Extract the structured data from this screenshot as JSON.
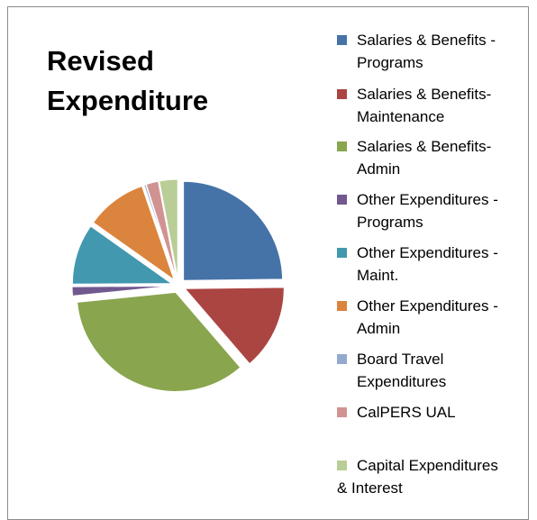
{
  "chart_data": {
    "type": "pie",
    "title": "Revised\nExpenditure",
    "legend_position": "right",
    "series": [
      {
        "name": "Salaries & Benefits - Programs",
        "value": 25.0,
        "color": "#4573a8"
      },
      {
        "name": "Salaries & Benefits- Maintenance",
        "value": 14.0,
        "color": "#ab4542"
      },
      {
        "name": "Salaries & Benefits- Admin",
        "value": 35.0,
        "color": "#89a54e"
      },
      {
        "name": "Other Expenditures - Programs",
        "value": 1.5,
        "color": "#71588f"
      },
      {
        "name": "Other Expenditures - Maint.",
        "value": 10.0,
        "color": "#4198af"
      },
      {
        "name": "Other Expenditures - Admin",
        "value": 10.0,
        "color": "#db843d"
      },
      {
        "name": "Board Travel Expenditures",
        "value": 0.3,
        "color": "#93a9cf"
      },
      {
        "name": "CalPERS UAL",
        "value": 2.0,
        "color": "#d19392"
      },
      {
        "name": "Capital Expenditures & Interest",
        "value": 3.0,
        "color": "#b9cd96"
      }
    ]
  }
}
